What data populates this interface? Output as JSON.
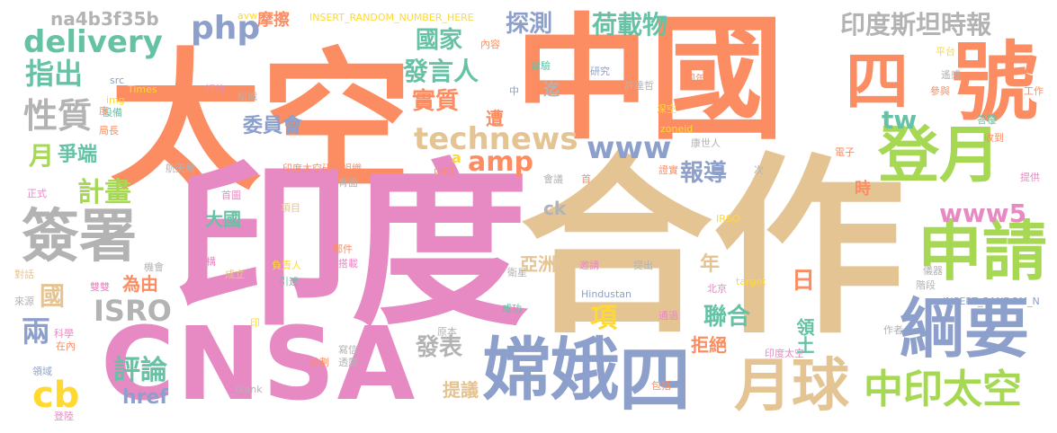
{
  "palette": {
    "orange": "#fc8d62",
    "pink": "#e78ac3",
    "tan": "#e5c494",
    "blue": "#8da0cb",
    "green": "#a6d854",
    "teal": "#66c2a5",
    "yellow": "#ffd92f",
    "gray": "#b3b3b3"
  },
  "words": [
    {
      "text": "中國",
      "color": "orange"
    },
    {
      "text": "太空",
      "color": "orange"
    },
    {
      "text": "印度",
      "color": "pink"
    },
    {
      "text": "合作",
      "color": "tan"
    },
    {
      "text": "CNSA",
      "color": "pink"
    },
    {
      "text": "號",
      "color": "orange"
    },
    {
      "text": "四",
      "color": "orange"
    },
    {
      "text": "登月",
      "color": "green"
    },
    {
      "text": "申請",
      "color": "green"
    },
    {
      "text": "綱要",
      "color": "blue"
    },
    {
      "text": "嫦娥",
      "color": "blue"
    },
    {
      "text": "四",
      "color": "blue"
    },
    {
      "text": "月球",
      "color": "tan"
    },
    {
      "text": "中印太空",
      "color": "green"
    },
    {
      "text": "簽署",
      "color": "gray"
    },
    {
      "text": "technews",
      "color": "tan"
    },
    {
      "text": "amp",
      "color": "orange"
    },
    {
      "text": "www",
      "color": "blue"
    },
    {
      "text": "www5",
      "color": "pink"
    },
    {
      "text": "delivery",
      "color": "teal"
    },
    {
      "text": "php",
      "color": "blue"
    },
    {
      "text": "na4b3f35b",
      "color": "gray"
    },
    {
      "text": "指出",
      "color": "teal"
    },
    {
      "text": "性質",
      "color": "gray"
    },
    {
      "text": "月",
      "color": "green"
    },
    {
      "text": "爭端",
      "color": "teal"
    },
    {
      "text": "計畫",
      "color": "green"
    },
    {
      "text": "委員會",
      "color": "blue"
    },
    {
      "text": "國家",
      "color": "teal"
    },
    {
      "text": "發言人",
      "color": "teal"
    },
    {
      "text": "實質",
      "color": "orange"
    },
    {
      "text": "探測",
      "color": "blue"
    },
    {
      "text": "荷載物",
      "color": "teal"
    },
    {
      "text": "印度斯坦時報",
      "color": "gray"
    },
    {
      "text": "tw",
      "color": "teal"
    },
    {
      "text": "報導",
      "color": "blue"
    },
    {
      "text": "日",
      "color": "orange"
    },
    {
      "text": "ISRO",
      "color": "gray"
    },
    {
      "text": "兩",
      "color": "blue"
    },
    {
      "text": "國",
      "color": "tan"
    },
    {
      "text": "cb",
      "color": "yellow"
    },
    {
      "text": "評論",
      "color": "teal"
    },
    {
      "text": "href",
      "color": "blue"
    },
    {
      "text": "發表",
      "color": "gray"
    },
    {
      "text": "提議",
      "color": "tan"
    },
    {
      "text": "聯合",
      "color": "teal"
    },
    {
      "text": "拒絕",
      "color": "orange"
    },
    {
      "text": "領土",
      "color": "teal"
    },
    {
      "text": "項",
      "color": "yellow"
    },
    {
      "text": "亞洲",
      "color": "tan"
    },
    {
      "text": "大國",
      "color": "teal"
    },
    {
      "text": "為由",
      "color": "orange"
    },
    {
      "text": "時",
      "color": "orange"
    },
    {
      "text": "年",
      "color": "tan"
    },
    {
      "text": "ck",
      "color": "gray"
    },
    {
      "text": "遭",
      "color": "orange"
    },
    {
      "text": "迄",
      "color": "gray"
    },
    {
      "text": "a",
      "color": "yellow"
    },
    {
      "text": "摩擦",
      "color": "orange"
    },
    {
      "text": "INSERT_RANDOM_NUMBER_HERE",
      "color": "yellow"
    },
    {
      "text": "avw",
      "color": "yellow"
    },
    {
      "text": "內容",
      "color": "orange"
    },
    {
      "text": "實驗",
      "color": "teal"
    },
    {
      "text": "研究",
      "color": "blue"
    },
    {
      "text": "許達哲",
      "color": "gray"
    },
    {
      "text": "同年",
      "color": "orange"
    },
    {
      "text": "平台",
      "color": "yellow"
    },
    {
      "text": "遙感",
      "color": "gray"
    },
    {
      "text": "參與",
      "color": "orange"
    },
    {
      "text": "工作",
      "color": "orange"
    },
    {
      "text": "答覆",
      "color": "teal"
    },
    {
      "text": "收到",
      "color": "orange"
    },
    {
      "text": "電子",
      "color": "orange"
    },
    {
      "text": "康世人",
      "color": "gray"
    },
    {
      "text": "證實",
      "color": "orange"
    },
    {
      "text": "次",
      "color": "gray"
    },
    {
      "text": "提供",
      "color": "pink"
    },
    {
      "text": "深空",
      "color": "yellow"
    },
    {
      "text": "zoneid",
      "color": "yellow"
    },
    {
      "text": "中",
      "color": "blue"
    },
    {
      "text": "src",
      "color": "blue"
    },
    {
      "text": "Times",
      "color": "yellow"
    },
    {
      "text": "img",
      "color": "yellow"
    },
    {
      "text": "評估",
      "color": "pink"
    },
    {
      "text": "組織",
      "color": "gray"
    },
    {
      "text": "設備",
      "color": "teal"
    },
    {
      "text": "局長",
      "color": "orange"
    },
    {
      "text": "度",
      "color": "orange"
    },
    {
      "text": "航天局",
      "color": "gray"
    },
    {
      "text": "印度太空研究組織",
      "color": "orange"
    },
    {
      "text": "中印",
      "color": "orange"
    },
    {
      "text": "首",
      "color": "orange"
    },
    {
      "text": "會議",
      "color": "gray"
    },
    {
      "text": "背面",
      "color": "gray"
    },
    {
      "text": "首圖",
      "color": "pink"
    },
    {
      "text": "項目",
      "color": "tan"
    },
    {
      "text": "正式",
      "color": "pink"
    },
    {
      "text": "IRSO",
      "color": "yellow"
    },
    {
      "text": "機會",
      "color": "gray"
    },
    {
      "text": "機構",
      "color": "pink"
    },
    {
      "text": "負責人",
      "color": "yellow"
    },
    {
      "text": "郵件",
      "color": "orange"
    },
    {
      "text": "邀請",
      "color": "pink"
    },
    {
      "text": "提出",
      "color": "gray"
    },
    {
      "text": "搭載",
      "color": "pink"
    },
    {
      "text": "衛星",
      "color": "gray"
    },
    {
      "text": "對話",
      "color": "tan"
    },
    {
      "text": "雙雙",
      "color": "pink"
    },
    {
      "text": "成立",
      "color": "tan"
    },
    {
      "text": "引述",
      "color": "teal"
    },
    {
      "text": "target",
      "color": "yellow"
    },
    {
      "text": "北京",
      "color": "pink"
    },
    {
      "text": "儀器",
      "color": "gray"
    },
    {
      "text": "階段",
      "color": "gray"
    },
    {
      "text": "INSERT_RANDOM_N",
      "color": "blue"
    },
    {
      "text": "來源",
      "color": "gray"
    },
    {
      "text": "Hindustan",
      "color": "blue"
    },
    {
      "text": "成功",
      "color": "teal"
    },
    {
      "text": "通過",
      "color": "pink"
    },
    {
      "text": "印",
      "color": "yellow"
    },
    {
      "text": "科學",
      "color": "pink"
    },
    {
      "text": "在內",
      "color": "orange"
    },
    {
      "text": "原本",
      "color": "gray"
    },
    {
      "text": "作者",
      "color": "gray"
    },
    {
      "text": "印度太空",
      "color": "pink"
    },
    {
      "text": "寫信",
      "color": "gray"
    },
    {
      "text": "透露",
      "color": "gray"
    },
    {
      "text": "計劃",
      "color": "orange"
    },
    {
      "text": "_blank",
      "color": "gray"
    },
    {
      "text": "包括",
      "color": "orange"
    },
    {
      "text": "領域",
      "color": "blue"
    },
    {
      "text": "登陸",
      "color": "pink"
    }
  ]
}
